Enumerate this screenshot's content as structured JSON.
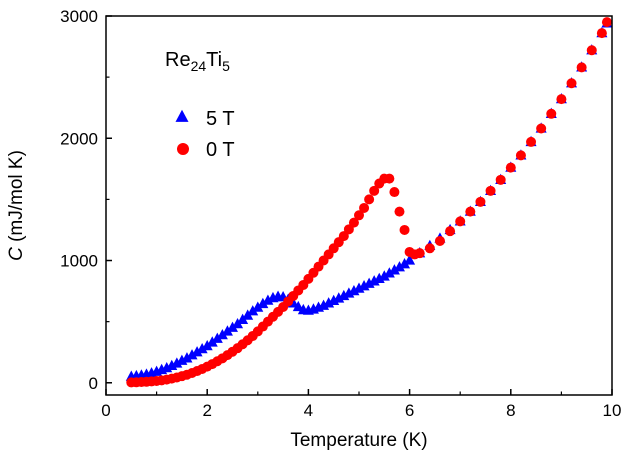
{
  "chart_data": {
    "type": "scatter",
    "xlabel": "Temperature (K)",
    "ylabel_symbol": "C",
    "ylabel_rest": " (mJ/mol K)",
    "xlim": [
      0,
      10
    ],
    "ylim": [
      -100,
      3000
    ],
    "x_ticks": [
      0,
      2,
      4,
      6,
      8,
      10
    ],
    "y_ticks": [
      0,
      1000,
      2000,
      3000
    ],
    "grid": false,
    "legend_placement": "top-left",
    "annotation": {
      "base": "Re",
      "sub1": "24",
      "mid": "Ti",
      "sub2": "5"
    },
    "series": [
      {
        "name": "5 T",
        "marker": "triangle",
        "color": "#0000ff",
        "x": [
          0.5,
          0.6,
          0.7,
          0.8,
          0.9,
          1.0,
          1.1,
          1.2,
          1.3,
          1.4,
          1.5,
          1.6,
          1.7,
          1.8,
          1.9,
          2.0,
          2.1,
          2.2,
          2.3,
          2.4,
          2.5,
          2.6,
          2.7,
          2.8,
          2.9,
          3.0,
          3.1,
          3.2,
          3.3,
          3.4,
          3.5,
          3.6,
          3.7,
          3.8,
          3.9,
          4.0,
          4.1,
          4.2,
          4.3,
          4.4,
          4.5,
          4.6,
          4.7,
          4.8,
          4.9,
          5.0,
          5.1,
          5.2,
          5.3,
          5.4,
          5.5,
          5.6,
          5.7,
          5.8,
          5.9,
          6.0,
          6.2,
          6.4,
          6.6,
          6.8,
          7.0,
          7.2,
          7.4,
          7.6,
          7.8,
          8.0,
          8.2,
          8.4,
          8.6,
          8.8,
          9.0,
          9.2,
          9.4,
          9.6,
          9.8,
          9.9
        ],
        "y": [
          50,
          55,
          60,
          68,
          78,
          90,
          105,
          120,
          138,
          158,
          180,
          200,
          225,
          250,
          275,
          300,
          330,
          360,
          390,
          420,
          450,
          480,
          515,
          550,
          585,
          615,
          645,
          672,
          693,
          705,
          700,
          680,
          650,
          620,
          595,
          590,
          600,
          615,
          630,
          650,
          670,
          690,
          710,
          730,
          750,
          770,
          790,
          810,
          830,
          850,
          870,
          895,
          920,
          945,
          970,
          1000,
          1060,
          1120,
          1180,
          1250,
          1320,
          1400,
          1480,
          1570,
          1660,
          1760,
          1860,
          1970,
          2080,
          2200,
          2320,
          2450,
          2580,
          2720,
          2860,
          2940
        ]
      },
      {
        "name": "0 T",
        "marker": "circle",
        "color": "#ff0000",
        "x": [
          0.5,
          0.6,
          0.7,
          0.8,
          0.9,
          1.0,
          1.1,
          1.2,
          1.3,
          1.4,
          1.5,
          1.6,
          1.7,
          1.8,
          1.9,
          2.0,
          2.1,
          2.2,
          2.3,
          2.4,
          2.5,
          2.6,
          2.7,
          2.8,
          2.9,
          3.0,
          3.1,
          3.2,
          3.3,
          3.4,
          3.5,
          3.6,
          3.7,
          3.8,
          3.9,
          4.0,
          4.1,
          4.2,
          4.3,
          4.4,
          4.5,
          4.6,
          4.7,
          4.8,
          4.9,
          5.0,
          5.1,
          5.2,
          5.3,
          5.4,
          5.5,
          5.6,
          5.7,
          5.8,
          5.9,
          6.0,
          6.1,
          6.2,
          6.4,
          6.6,
          6.8,
          7.0,
          7.2,
          7.4,
          7.6,
          7.8,
          8.0,
          8.2,
          8.4,
          8.6,
          8.8,
          9.0,
          9.2,
          9.4,
          9.6,
          9.8,
          9.9
        ],
        "y": [
          3,
          4,
          6,
          8,
          11,
          15,
          20,
          26,
          34,
          43,
          54,
          66,
          80,
          96,
          113,
          132,
          153,
          176,
          200,
          226,
          254,
          283,
          315,
          348,
          383,
          420,
          460,
          500,
          540,
          580,
          620,
          665,
          710,
          755,
          800,
          850,
          900,
          950,
          1000,
          1050,
          1100,
          1150,
          1200,
          1255,
          1310,
          1370,
          1430,
          1500,
          1570,
          1630,
          1670,
          1670,
          1560,
          1400,
          1250,
          1070,
          1050,
          1060,
          1100,
          1160,
          1240,
          1320,
          1400,
          1480,
          1570,
          1660,
          1760,
          1860,
          1970,
          2080,
          2200,
          2320,
          2450,
          2580,
          2720,
          2860,
          2950
        ]
      }
    ]
  }
}
